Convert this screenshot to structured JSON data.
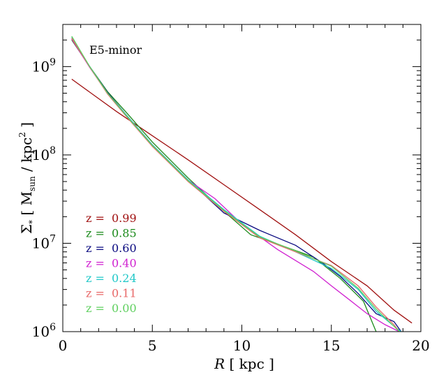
{
  "chart_data": {
    "type": "line",
    "annotation": "E5-minor",
    "xlabel": {
      "italic": "R",
      "rest": "[ kpc ]"
    },
    "ylabel": {
      "symbol": "Σ",
      "symbol_sub": "*",
      "open": "[ M",
      "msub": "sun",
      "mid": " / kpc",
      "sup": "2",
      "close": " ]"
    },
    "xlim": [
      0,
      20
    ],
    "ylim": [
      1000000,
      3000000000
    ],
    "yscale": "log",
    "x_ticks": [
      0,
      5,
      10,
      15,
      20
    ],
    "x_tick_labels": [
      "0",
      "5",
      "10",
      "15",
      "20"
    ],
    "y_ticks": [
      {
        "value": 1000000,
        "base": "10",
        "exp": "6"
      },
      {
        "value": 10000000,
        "base": "10",
        "exp": "7"
      },
      {
        "value": 100000000,
        "base": "10",
        "exp": "8"
      },
      {
        "value": 1000000000,
        "base": "10",
        "exp": "9"
      }
    ],
    "grid": false,
    "legend_position": "left-middle",
    "series": [
      {
        "name": "z = 0.99",
        "label": "z =",
        "value": "0.99",
        "color": "#a01010",
        "x": [
          0.5,
          3,
          5,
          7,
          9,
          11,
          13,
          15,
          17,
          18.5,
          19.5
        ],
        "y": [
          720000000,
          310000000,
          165000000,
          88000000,
          46000000,
          24000000,
          12500000,
          6200000,
          3300000,
          1750000,
          1250000
        ]
      },
      {
        "name": "z = 0.85",
        "label": "z =",
        "value": "0.85",
        "color": "#1a8a1a",
        "x": [
          0.5,
          1.5,
          2.5,
          3.5,
          5,
          7,
          9,
          10.5,
          12.5,
          14,
          15.5,
          16.8,
          17.5
        ],
        "y": [
          2000000000,
          1000000000,
          520000000,
          310000000,
          140000000,
          55000000,
          23000000,
          12500000,
          9000000,
          7000000,
          4000000,
          2200000,
          1000000
        ]
      },
      {
        "name": "z = 0.60",
        "label": "z =",
        "value": "0.60",
        "color": "#0a0a80",
        "x": [
          0.5,
          1.5,
          2.5,
          3.5,
          5,
          7,
          9,
          11,
          13,
          14.5,
          15.5,
          16.5,
          17.5,
          18.5,
          18.9
        ],
        "y": [
          2100000000,
          1000000000,
          510000000,
          290000000,
          130000000,
          52000000,
          22000000,
          14000000,
          9500000,
          6000000,
          4200000,
          2700000,
          1600000,
          1300000,
          1000000
        ]
      },
      {
        "name": "z = 0.40",
        "label": "z =",
        "value": "0.40",
        "color": "#d020d0",
        "x": [
          0.5,
          1.5,
          2.5,
          3.5,
          5,
          7,
          8.5,
          10,
          12,
          14,
          15,
          16,
          17,
          18,
          18.8
        ],
        "y": [
          2050000000,
          980000000,
          500000000,
          290000000,
          130000000,
          52000000,
          32000000,
          16500000,
          8500000,
          4800000,
          3300000,
          2300000,
          1600000,
          1200000,
          1000000
        ]
      },
      {
        "name": "z = 0.24",
        "label": "z =",
        "value": "0.24",
        "color": "#20c8c8",
        "x": [
          0.5,
          1.5,
          2.5,
          3.5,
          5,
          7,
          9,
          11,
          13,
          15,
          16.5,
          17.5,
          18.5,
          18.9
        ],
        "y": [
          2150000000,
          1000000000,
          500000000,
          290000000,
          130000000,
          52000000,
          24000000,
          12000000,
          8000000,
          5200000,
          3000000,
          1700000,
          1150000,
          1000000
        ]
      },
      {
        "name": "z = 0.11",
        "label": "z =",
        "value": "0.11",
        "color": "#e86868",
        "x": [
          0.5,
          1.5,
          2.5,
          3.5,
          5,
          7,
          9,
          11,
          13,
          15,
          16.5,
          17.5,
          18.5,
          18.8
        ],
        "y": [
          2100000000,
          990000000,
          490000000,
          280000000,
          125000000,
          50000000,
          23000000,
          11500000,
          8000000,
          5600000,
          3300000,
          1900000,
          1200000,
          1000000
        ]
      },
      {
        "name": "z = 0.00",
        "label": "z =",
        "value": "0.00",
        "color": "#60d060",
        "x": [
          0.5,
          1.5,
          2.5,
          3.5,
          5,
          7,
          9,
          11,
          13,
          15,
          16.5,
          17.5,
          18.5,
          18.8
        ],
        "y": [
          2200000000,
          1000000000,
          500000000,
          285000000,
          128000000,
          51000000,
          23500000,
          11800000,
          8200000,
          5500000,
          3100000,
          1800000,
          1150000,
          1000000
        ]
      }
    ]
  }
}
